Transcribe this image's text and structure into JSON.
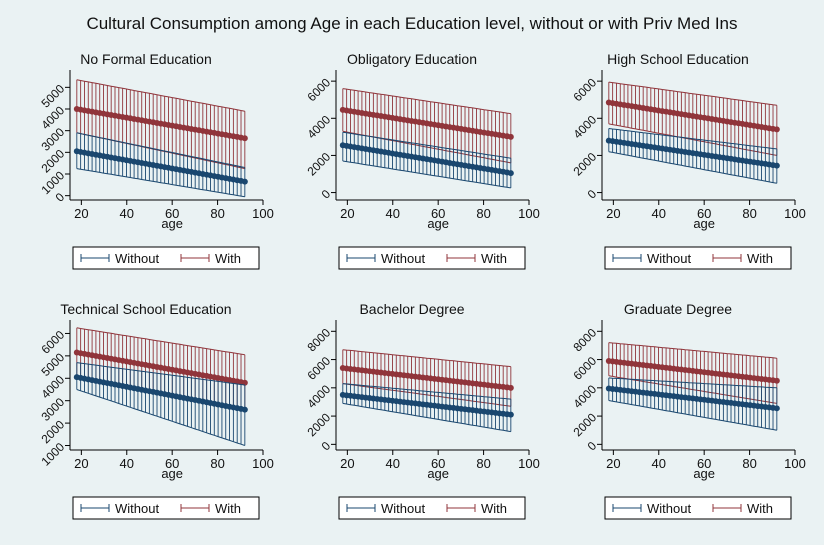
{
  "title": "Cultural Consumption among Age in each Education level, without or with Priv Med Ins",
  "colors": {
    "without": "#1a476f",
    "with": "#90353b",
    "background": "#eaf2f3"
  },
  "chart_data": [
    {
      "type": "line",
      "title": "No Formal Education",
      "xlabel": "age",
      "xlim": [
        15,
        100
      ],
      "ylim": [
        -200,
        5800
      ],
      "xticks": [
        "20",
        "40",
        "60",
        "80",
        "100"
      ],
      "yticks": [
        "0",
        "1000",
        "2000",
        "3000",
        "4000",
        "5000"
      ],
      "x_range": [
        18,
        92
      ],
      "legend": "bottom",
      "series": [
        {
          "name": "Without",
          "color": "#1a476f",
          "fit": [
            2050,
            650
          ],
          "ci_low": [
            1250,
            -50
          ],
          "ci_high": [
            2900,
            1300
          ]
        },
        {
          "name": "With",
          "color": "#90353b",
          "fit": [
            4000,
            2650
          ],
          "ci_low": [
            2900,
            1250
          ],
          "ci_high": [
            5350,
            3900
          ]
        }
      ]
    },
    {
      "type": "line",
      "title": "Obligatory Education",
      "xlabel": "age",
      "xlim": [
        15,
        100
      ],
      "ylim": [
        -400,
        6600
      ],
      "xticks": [
        "20",
        "40",
        "60",
        "80",
        "100"
      ],
      "yticks": [
        "0",
        "2000",
        "4000",
        "6000"
      ],
      "x_range": [
        18,
        92
      ],
      "legend": "bottom",
      "series": [
        {
          "name": "Without",
          "color": "#1a476f",
          "fit": [
            2550,
            1050
          ],
          "ci_low": [
            1700,
            250
          ],
          "ci_high": [
            3250,
            1850
          ]
        },
        {
          "name": "With",
          "color": "#90353b",
          "fit": [
            4450,
            3000
          ],
          "ci_low": [
            3300,
            1600
          ],
          "ci_high": [
            5600,
            4250
          ]
        }
      ]
    },
    {
      "type": "line",
      "title": "High School Education",
      "xlabel": "age",
      "xlim": [
        15,
        100
      ],
      "ylim": [
        -400,
        6600
      ],
      "xticks": [
        "20",
        "40",
        "60",
        "80",
        "100"
      ],
      "yticks": [
        "0",
        "2000",
        "4000",
        "6000"
      ],
      "x_range": [
        18,
        92
      ],
      "legend": "bottom",
      "series": [
        {
          "name": "Without",
          "color": "#1a476f",
          "fit": [
            2800,
            1450
          ],
          "ci_low": [
            2200,
            500
          ],
          "ci_high": [
            3450,
            2350
          ]
        },
        {
          "name": "With",
          "color": "#90353b",
          "fit": [
            4850,
            3400
          ],
          "ci_low": [
            3700,
            2000
          ],
          "ci_high": [
            5950,
            4700
          ]
        }
      ]
    },
    {
      "type": "line",
      "title": "Technical School Education",
      "xlabel": "age",
      "xlim": [
        15,
        100
      ],
      "ylim": [
        800,
        6600
      ],
      "xticks": [
        "20",
        "40",
        "60",
        "80",
        "100"
      ],
      "yticks": [
        "1000",
        "2000",
        "3000",
        "4000",
        "5000",
        "6000"
      ],
      "x_range": [
        18,
        92
      ],
      "legend": "bottom",
      "series": [
        {
          "name": "Without",
          "color": "#1a476f",
          "fit": [
            4050,
            2600
          ],
          "ci_low": [
            3500,
            1000
          ],
          "ci_high": [
            4700,
            3700
          ]
        },
        {
          "name": "With",
          "color": "#90353b",
          "fit": [
            5150,
            3800
          ],
          "ci_low": [
            4050,
            2600
          ],
          "ci_high": [
            6250,
            5050
          ]
        }
      ]
    },
    {
      "type": "line",
      "title": "Bachelor Degree",
      "xlabel": "age",
      "xlim": [
        15,
        100
      ],
      "ylim": [
        -400,
        8800
      ],
      "xticks": [
        "20",
        "40",
        "60",
        "80",
        "100"
      ],
      "yticks": [
        "0",
        "2000",
        "4000",
        "6000",
        "8000"
      ],
      "x_range": [
        18,
        92
      ],
      "legend": "bottom",
      "series": [
        {
          "name": "Without",
          "color": "#1a476f",
          "fit": [
            3500,
            2100
          ],
          "ci_low": [
            2900,
            900
          ],
          "ci_high": [
            4300,
            3200
          ]
        },
        {
          "name": "With",
          "color": "#90353b",
          "fit": [
            5400,
            4000
          ],
          "ci_low": [
            4300,
            2700
          ],
          "ci_high": [
            6700,
            5500
          ]
        }
      ]
    },
    {
      "type": "line",
      "title": "Graduate Degree",
      "xlabel": "age",
      "xlim": [
        15,
        100
      ],
      "ylim": [
        -400,
        8800
      ],
      "xticks": [
        "20",
        "40",
        "60",
        "80",
        "100"
      ],
      "yticks": [
        "0",
        "2000",
        "4000",
        "6000",
        "8000"
      ],
      "x_range": [
        18,
        92
      ],
      "legend": "bottom",
      "series": [
        {
          "name": "Without",
          "color": "#1a476f",
          "fit": [
            3950,
            2550
          ],
          "ci_low": [
            3100,
            1000
          ],
          "ci_high": [
            4700,
            4000
          ]
        },
        {
          "name": "With",
          "color": "#90353b",
          "fit": [
            5900,
            4500
          ],
          "ci_low": [
            4850,
            2900
          ],
          "ci_high": [
            7200,
            6100
          ]
        }
      ]
    }
  ]
}
